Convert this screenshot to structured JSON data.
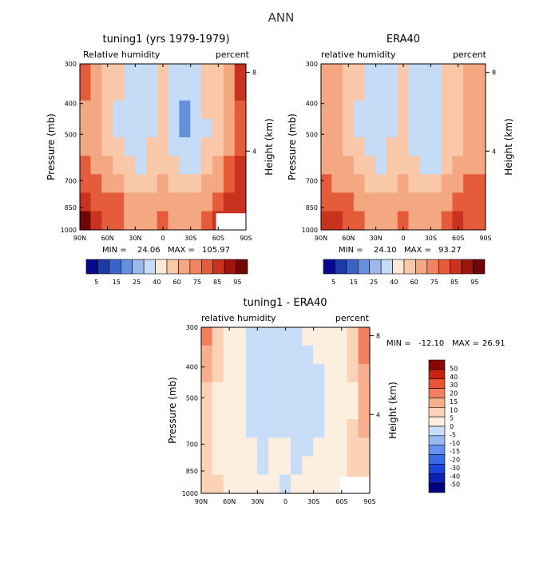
{
  "figure": {
    "title": "ANN"
  },
  "palettes": {
    "full": [
      "#08088c",
      "#1c3aa8",
      "#3a64c8",
      "#6690dc",
      "#9cb8ec",
      "#c6dcf6",
      "#fce8d6",
      "#f8c8a8",
      "#f4a882",
      "#f08460",
      "#e45c3a",
      "#c8321e",
      "#a0140e",
      "#700606"
    ],
    "diff": [
      "#00007e",
      "#0a22b4",
      "#1c44dc",
      "#3a6ce8",
      "#6492ee",
      "#98baf4",
      "#c8def8",
      "#fdefe0",
      "#fbd2b6",
      "#f7ae8a",
      "#f28060",
      "#ea5436",
      "#c8220c",
      "#8c0606"
    ]
  },
  "chart_data": [
    {
      "type": "heatmap",
      "id": "model",
      "title": "tuning1 (yrs 1979-1979)",
      "left_label": "Relative humidity",
      "right_label": "percent",
      "xlabel": "",
      "ylabel": "Pressure (mb)",
      "y2label": "Height (km)",
      "xticks": [
        "90N",
        "60N",
        "30N",
        "0",
        "30S",
        "60S",
        "90S"
      ],
      "yticks": [
        300,
        400,
        500,
        700,
        850,
        1000
      ],
      "y2ticks": [
        8,
        4
      ],
      "stats": {
        "min_label": "MIN =",
        "min": "24.06",
        "max_label": "MAX =",
        "max": "105.97"
      },
      "missing_region": "lower-right",
      "levels": [
        5,
        15,
        25,
        40,
        60,
        75,
        85,
        95
      ],
      "field": [
        [
          82,
          72,
          58,
          45,
          32,
          26,
          28,
          40,
          30,
          25,
          28,
          45,
          58,
          70,
          88
        ],
        [
          78,
          68,
          55,
          42,
          30,
          26,
          30,
          42,
          30,
          25,
          28,
          42,
          55,
          70,
          85
        ],
        [
          72,
          65,
          52,
          38,
          28,
          25,
          32,
          44,
          30,
          24,
          26,
          40,
          55,
          68,
          82
        ],
        [
          68,
          62,
          50,
          38,
          28,
          26,
          34,
          46,
          30,
          24,
          26,
          38,
          52,
          66,
          78
        ],
        [
          70,
          65,
          55,
          42,
          32,
          30,
          40,
          50,
          34,
          28,
          30,
          42,
          55,
          70,
          80
        ],
        [
          75,
          70,
          62,
          50,
          40,
          36,
          42,
          55,
          40,
          34,
          36,
          48,
          62,
          75,
          85
        ],
        [
          82,
          78,
          72,
          64,
          55,
          48,
          52,
          60,
          50,
          46,
          50,
          60,
          72,
          82,
          88
        ],
        [
          88,
          84,
          80,
          75,
          68,
          60,
          62,
          66,
          62,
          60,
          65,
          72,
          80,
          86,
          90
        ],
        [
          95,
          90,
          84,
          80,
          74,
          66,
          70,
          78,
          68,
          66,
          72,
          82,
          88,
          88,
          92
        ]
      ],
      "colorbar_ticks": [
        "5",
        "15",
        "25",
        "40",
        "60",
        "75",
        "85",
        "95"
      ]
    },
    {
      "type": "heatmap",
      "id": "obs",
      "title": "ERA40",
      "left_label": "relative humidity",
      "right_label": "percent",
      "xlabel": "",
      "ylabel": "Pressure (mb)",
      "y2label": "Height (km)",
      "xticks": [
        "90N",
        "60N",
        "30N",
        "0",
        "30S",
        "60S",
        "90S"
      ],
      "yticks": [
        300,
        400,
        500,
        700,
        850,
        1000
      ],
      "y2ticks": [
        8,
        4
      ],
      "stats": {
        "min_label": "MIN =",
        "min": "24.10",
        "max_label": "MAX =",
        "max": "93.27"
      },
      "missing_region": "none",
      "levels": [
        5,
        15,
        25,
        40,
        60,
        75,
        85,
        95
      ],
      "field": [
        [
          66,
          64,
          56,
          45,
          34,
          28,
          28,
          40,
          30,
          28,
          32,
          46,
          58,
          66,
          70
        ],
        [
          64,
          62,
          54,
          42,
          32,
          28,
          30,
          42,
          30,
          27,
          30,
          44,
          56,
          64,
          68
        ],
        [
          62,
          60,
          52,
          38,
          28,
          26,
          32,
          44,
          30,
          25,
          28,
          42,
          54,
          62,
          66
        ],
        [
          62,
          60,
          52,
          38,
          30,
          28,
          34,
          46,
          32,
          26,
          28,
          40,
          52,
          62,
          66
        ],
        [
          64,
          62,
          56,
          44,
          34,
          32,
          40,
          52,
          36,
          30,
          32,
          44,
          56,
          64,
          68
        ],
        [
          68,
          66,
          60,
          50,
          42,
          38,
          44,
          55,
          42,
          36,
          38,
          50,
          60,
          68,
          70
        ],
        [
          76,
          74,
          70,
          62,
          54,
          50,
          52,
          60,
          52,
          48,
          52,
          62,
          70,
          76,
          78
        ],
        [
          84,
          82,
          78,
          74,
          68,
          62,
          64,
          68,
          64,
          62,
          66,
          72,
          78,
          82,
          84
        ],
        [
          86,
          85,
          82,
          78,
          72,
          66,
          70,
          80,
          68,
          66,
          72,
          82,
          86,
          84,
          84
        ]
      ],
      "colorbar_ticks": [
        "5",
        "15",
        "25",
        "40",
        "60",
        "75",
        "85",
        "95"
      ]
    },
    {
      "type": "heatmap",
      "id": "diff",
      "title": "tuning1 - ERA40",
      "left_label": "relative humidity",
      "right_label": "percent",
      "xlabel": "",
      "ylabel": "Pressure (mb)",
      "y2label": "Height (km)",
      "xticks": [
        "90N",
        "60N",
        "30N",
        "0",
        "30S",
        "60S",
        "90S"
      ],
      "yticks": [
        300,
        400,
        500,
        700,
        850,
        1000
      ],
      "y2ticks": [
        8,
        4
      ],
      "stats": {
        "min_label": "MIN =",
        "min": "-12.10",
        "max_label": "MAX =",
        "max": "26.91"
      },
      "missing_region": "lower-right",
      "levels": [
        -50,
        -40,
        -30,
        -20,
        -15,
        -10,
        -5,
        0,
        5,
        10,
        15,
        20,
        30,
        40,
        50
      ],
      "field": [
        [
          16,
          8,
          2,
          0,
          -2,
          -2,
          -3,
          -2,
          -1,
          0,
          1,
          2,
          3,
          8,
          18
        ],
        [
          14,
          6,
          2,
          1,
          -1,
          -2,
          -3,
          -2,
          -1,
          -1,
          0,
          1,
          3,
          6,
          16
        ],
        [
          10,
          5,
          1,
          1,
          -1,
          -2,
          -3,
          -2,
          -1,
          -2,
          -1,
          0,
          1,
          5,
          14
        ],
        [
          6,
          2,
          1,
          1,
          -1,
          -2,
          -3,
          -2,
          -2,
          -2,
          -1,
          0,
          1,
          3,
          10
        ],
        [
          6,
          3,
          1,
          0,
          -1,
          -2,
          -2,
          -2,
          -2,
          -2,
          -1,
          0,
          1,
          4,
          10
        ],
        [
          7,
          3,
          1,
          0,
          -1,
          -2,
          -2,
          -1,
          -2,
          -2,
          -1,
          1,
          3,
          6,
          12
        ],
        [
          6,
          3,
          1,
          0,
          0,
          -1,
          0,
          0,
          -1,
          -1,
          0,
          2,
          4,
          6,
          8
        ],
        [
          5,
          2,
          1,
          0,
          0,
          -1,
          0,
          0,
          -1,
          0,
          1,
          2,
          3,
          5,
          6
        ],
        [
          9,
          5,
          2,
          1,
          0,
          0,
          0,
          -1,
          0,
          0,
          1,
          3,
          4,
          5,
          8
        ]
      ],
      "colorbar_ticks": [
        "50",
        "40",
        "30",
        "20",
        "15",
        "10",
        "5",
        "0",
        "-5",
        "-10",
        "-15",
        "-20",
        "-30",
        "-40",
        "-50"
      ]
    }
  ]
}
